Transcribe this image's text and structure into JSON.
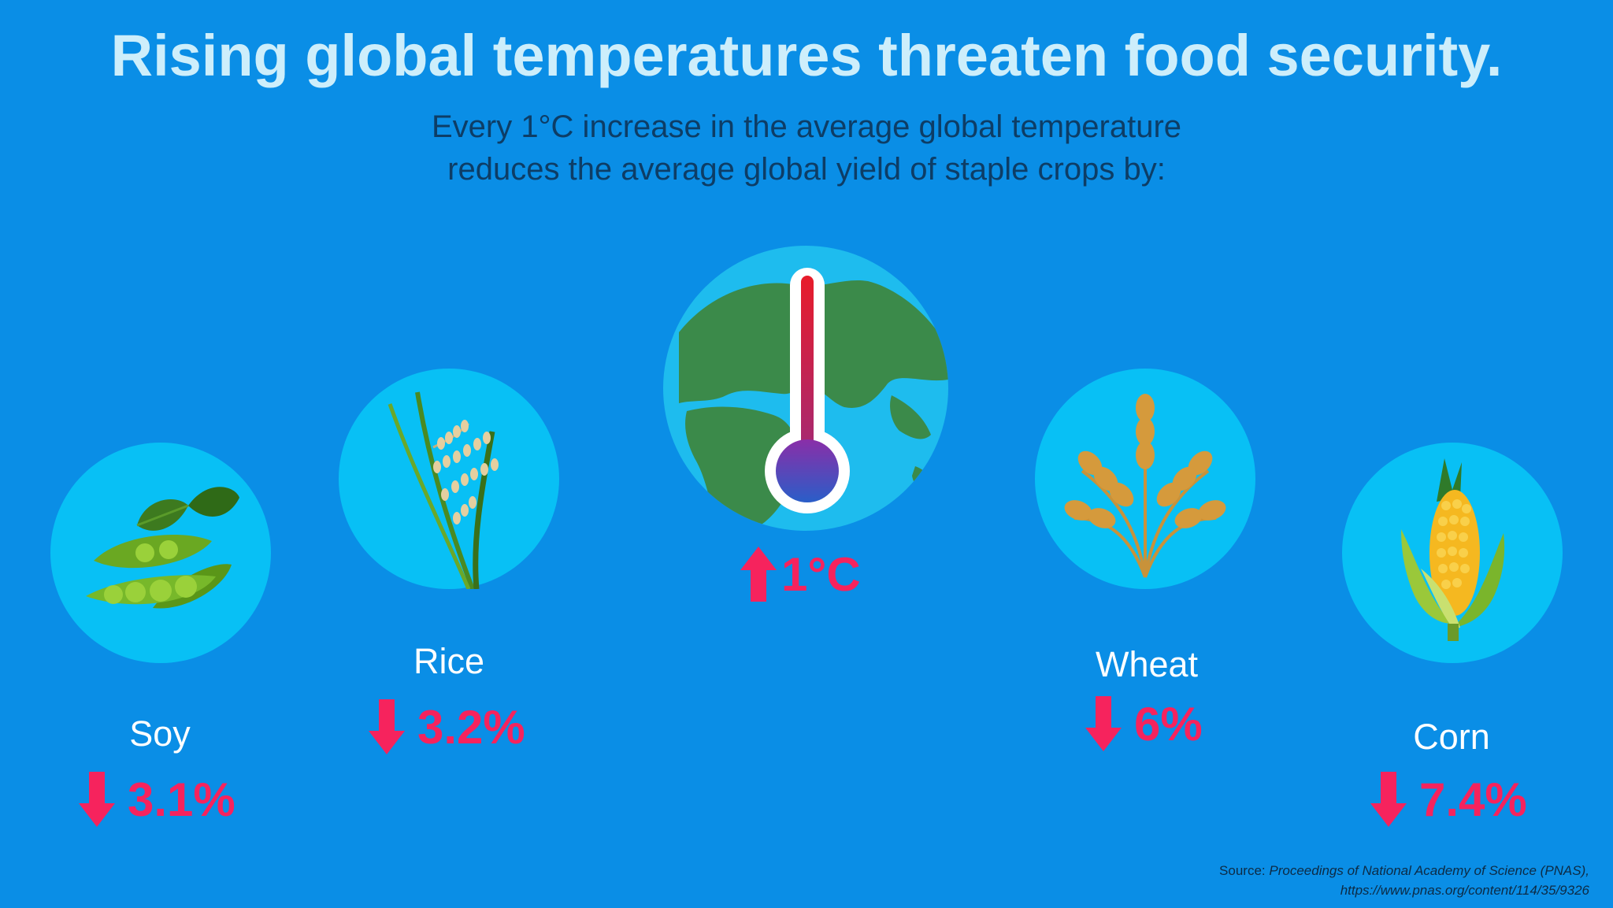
{
  "title": "Rising global temperatures threaten food security.",
  "subtitle": {
    "line1": "Every 1°C increase in the average global temperature",
    "line2": "reduces the average global yield of staple crops by:"
  },
  "center": {
    "value": "1°C",
    "icon": "thermometer-icon",
    "globe_icon": "earth-globe-icon"
  },
  "crops": {
    "soy": {
      "label": "Soy",
      "value": "3.1%",
      "icon": "soybean-icon"
    },
    "rice": {
      "label": "Rice",
      "value": "3.2%",
      "icon": "rice-icon"
    },
    "wheat": {
      "label": "Wheat",
      "value": "6%",
      "icon": "wheat-icon"
    },
    "corn": {
      "label": "Corn",
      "value": "7.4%",
      "icon": "corn-icon"
    }
  },
  "source": {
    "prefix": "Source:",
    "name": "Proceedings of National Academy of Science (PNAS),",
    "url": "https://www.pnas.org/content/114/35/9326"
  },
  "colors": {
    "background": "#0a8ee6",
    "title": "#cdeefb",
    "subtitle": "#0d3d66",
    "circle": "#08c0f5",
    "accent": "#f6235d"
  }
}
